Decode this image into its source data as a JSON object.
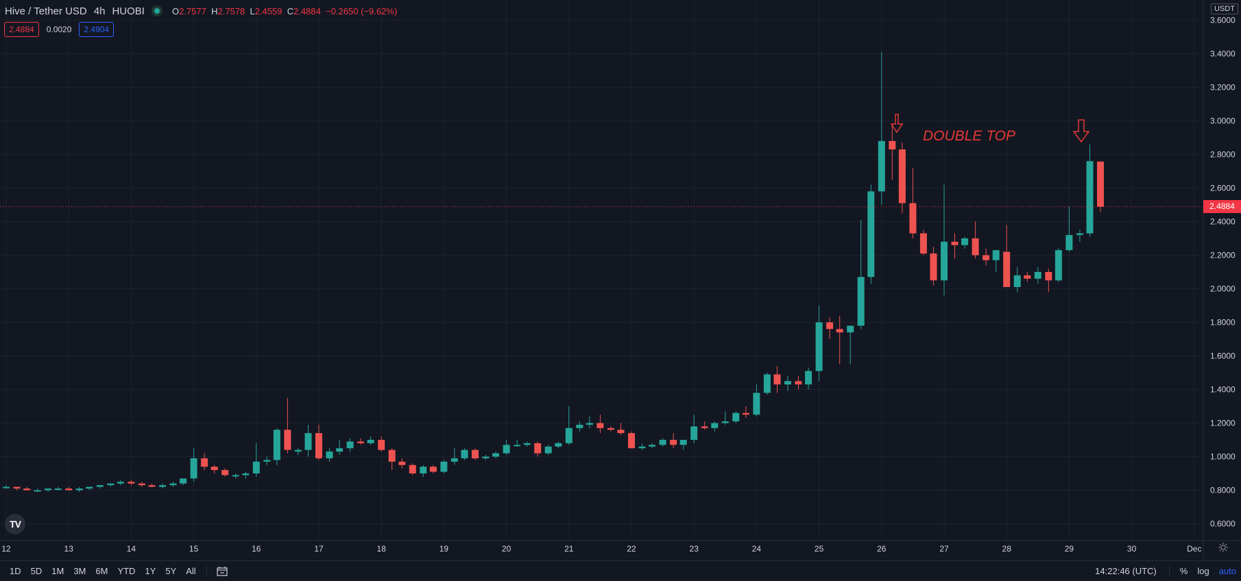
{
  "symbol": {
    "name": "Hive / Tether USD",
    "interval": "4h",
    "exchange": "HUOBI"
  },
  "ohlc": {
    "o_label": "O",
    "o": "2.7577",
    "h_label": "H",
    "h": "2.7578",
    "l_label": "L",
    "l": "2.4559",
    "c_label": "C",
    "c": "2.4884",
    "change": "−0.2650 (−9.62%)"
  },
  "quote": {
    "sell": "2.4884",
    "spread": "0.0020",
    "buy": "2.4904"
  },
  "currency_tag": "USDT",
  "last_price_label": "2.4884",
  "timeframes": [
    "1D",
    "5D",
    "1M",
    "3M",
    "6M",
    "YTD",
    "1Y",
    "5Y",
    "All"
  ],
  "clock": "14:22:46 (UTC)",
  "scale_buttons": {
    "percent": "%",
    "log": "log",
    "auto": "auto"
  },
  "logo_text": "TV",
  "colors": {
    "up": "#26a69a",
    "down": "#ef5350",
    "background": "#131722",
    "grid": "#1e222d",
    "annotation": "#e53935",
    "last_price_line": "#f23645"
  },
  "icons": {
    "calendar": "calendar-icon",
    "settings": "gear-icon",
    "live": "live-dot-icon",
    "arrows": "down-arrow-icon"
  },
  "chart_data": {
    "type": "candlestick",
    "y_scale": "linear",
    "ylim": [
      0.5,
      3.72
    ],
    "y_ticks": [
      "3.6000",
      "3.4000",
      "3.2000",
      "3.0000",
      "2.8000",
      "2.6000",
      "2.4000",
      "2.2000",
      "2.0000",
      "1.8000",
      "1.6000",
      "1.4000",
      "1.2000",
      "1.0000",
      "0.8000",
      "0.6000"
    ],
    "x_ticks": [
      "12",
      "13",
      "14",
      "15",
      "16",
      "17",
      "18",
      "19",
      "20",
      "21",
      "22",
      "23",
      "24",
      "25",
      "26",
      "27",
      "28",
      "29",
      "30",
      "Dec"
    ],
    "last_price": 2.4884,
    "annotation": "DOUBLE TOP",
    "series": [
      {
        "d": 12.0,
        "o": 0.82,
        "h": 0.83,
        "l": 0.81,
        "c": 0.82
      },
      {
        "d": 12.17,
        "o": 0.82,
        "h": 0.82,
        "l": 0.8,
        "c": 0.81
      },
      {
        "d": 12.33,
        "o": 0.81,
        "h": 0.82,
        "l": 0.8,
        "c": 0.8
      },
      {
        "d": 12.5,
        "o": 0.8,
        "h": 0.81,
        "l": 0.79,
        "c": 0.8
      },
      {
        "d": 12.67,
        "o": 0.8,
        "h": 0.81,
        "l": 0.79,
        "c": 0.81
      },
      {
        "d": 12.83,
        "o": 0.81,
        "h": 0.82,
        "l": 0.8,
        "c": 0.81
      },
      {
        "d": 13.0,
        "o": 0.81,
        "h": 0.82,
        "l": 0.8,
        "c": 0.8
      },
      {
        "d": 13.17,
        "o": 0.8,
        "h": 0.82,
        "l": 0.79,
        "c": 0.81
      },
      {
        "d": 13.33,
        "o": 0.81,
        "h": 0.82,
        "l": 0.8,
        "c": 0.82
      },
      {
        "d": 13.5,
        "o": 0.82,
        "h": 0.83,
        "l": 0.81,
        "c": 0.83
      },
      {
        "d": 13.67,
        "o": 0.83,
        "h": 0.84,
        "l": 0.82,
        "c": 0.84
      },
      {
        "d": 13.83,
        "o": 0.84,
        "h": 0.86,
        "l": 0.83,
        "c": 0.85
      },
      {
        "d": 14.0,
        "o": 0.85,
        "h": 0.86,
        "l": 0.83,
        "c": 0.84
      },
      {
        "d": 14.17,
        "o": 0.84,
        "h": 0.85,
        "l": 0.82,
        "c": 0.83
      },
      {
        "d": 14.33,
        "o": 0.83,
        "h": 0.84,
        "l": 0.82,
        "c": 0.82
      },
      {
        "d": 14.5,
        "o": 0.82,
        "h": 0.84,
        "l": 0.81,
        "c": 0.83
      },
      {
        "d": 14.67,
        "o": 0.83,
        "h": 0.85,
        "l": 0.82,
        "c": 0.84
      },
      {
        "d": 14.83,
        "o": 0.84,
        "h": 0.87,
        "l": 0.83,
        "c": 0.87
      },
      {
        "d": 15.0,
        "o": 0.87,
        "h": 1.05,
        "l": 0.85,
        "c": 0.99
      },
      {
        "d": 15.17,
        "o": 0.99,
        "h": 1.02,
        "l": 0.92,
        "c": 0.94
      },
      {
        "d": 15.33,
        "o": 0.94,
        "h": 0.95,
        "l": 0.9,
        "c": 0.92
      },
      {
        "d": 15.5,
        "o": 0.92,
        "h": 0.93,
        "l": 0.88,
        "c": 0.89
      },
      {
        "d": 15.67,
        "o": 0.89,
        "h": 0.9,
        "l": 0.87,
        "c": 0.89
      },
      {
        "d": 15.83,
        "o": 0.89,
        "h": 0.91,
        "l": 0.87,
        "c": 0.9
      },
      {
        "d": 16.0,
        "o": 0.9,
        "h": 1.08,
        "l": 0.88,
        "c": 0.97
      },
      {
        "d": 16.17,
        "o": 0.97,
        "h": 1.0,
        "l": 0.95,
        "c": 0.98
      },
      {
        "d": 16.33,
        "o": 0.98,
        "h": 1.17,
        "l": 0.95,
        "c": 1.16
      },
      {
        "d": 16.5,
        "o": 1.16,
        "h": 1.35,
        "l": 1.02,
        "c": 1.04
      },
      {
        "d": 16.67,
        "o": 1.03,
        "h": 1.05,
        "l": 1.01,
        "c": 1.04
      },
      {
        "d": 16.83,
        "o": 1.04,
        "h": 1.19,
        "l": 1.0,
        "c": 1.14
      },
      {
        "d": 17.0,
        "o": 1.14,
        "h": 1.19,
        "l": 0.98,
        "c": 0.99
      },
      {
        "d": 17.17,
        "o": 0.99,
        "h": 1.05,
        "l": 0.97,
        "c": 1.03
      },
      {
        "d": 17.33,
        "o": 1.03,
        "h": 1.1,
        "l": 1.01,
        "c": 1.05
      },
      {
        "d": 17.5,
        "o": 1.05,
        "h": 1.11,
        "l": 1.03,
        "c": 1.09
      },
      {
        "d": 17.67,
        "o": 1.09,
        "h": 1.11,
        "l": 1.07,
        "c": 1.08
      },
      {
        "d": 17.83,
        "o": 1.08,
        "h": 1.12,
        "l": 1.07,
        "c": 1.1
      },
      {
        "d": 18.0,
        "o": 1.1,
        "h": 1.12,
        "l": 1.03,
        "c": 1.04
      },
      {
        "d": 18.17,
        "o": 1.04,
        "h": 1.05,
        "l": 0.92,
        "c": 0.97
      },
      {
        "d": 18.33,
        "o": 0.97,
        "h": 0.99,
        "l": 0.93,
        "c": 0.95
      },
      {
        "d": 18.5,
        "o": 0.95,
        "h": 0.96,
        "l": 0.89,
        "c": 0.9
      },
      {
        "d": 18.67,
        "o": 0.9,
        "h": 0.95,
        "l": 0.88,
        "c": 0.94
      },
      {
        "d": 18.83,
        "o": 0.94,
        "h": 0.95,
        "l": 0.9,
        "c": 0.91
      },
      {
        "d": 19.0,
        "o": 0.91,
        "h": 0.98,
        "l": 0.9,
        "c": 0.97
      },
      {
        "d": 19.17,
        "o": 0.97,
        "h": 1.05,
        "l": 0.95,
        "c": 0.99
      },
      {
        "d": 19.33,
        "o": 0.99,
        "h": 1.05,
        "l": 0.98,
        "c": 1.04
      },
      {
        "d": 19.5,
        "o": 1.04,
        "h": 1.05,
        "l": 0.98,
        "c": 0.99
      },
      {
        "d": 19.67,
        "o": 0.99,
        "h": 1.01,
        "l": 0.98,
        "c": 1.0
      },
      {
        "d": 19.83,
        "o": 1.0,
        "h": 1.03,
        "l": 0.99,
        "c": 1.02
      },
      {
        "d": 20.0,
        "o": 1.02,
        "h": 1.1,
        "l": 1.01,
        "c": 1.07
      },
      {
        "d": 20.17,
        "o": 1.07,
        "h": 1.1,
        "l": 1.06,
        "c": 1.07
      },
      {
        "d": 20.33,
        "o": 1.07,
        "h": 1.09,
        "l": 1.06,
        "c": 1.08
      },
      {
        "d": 20.5,
        "o": 1.08,
        "h": 1.09,
        "l": 1.0,
        "c": 1.02
      },
      {
        "d": 20.67,
        "o": 1.02,
        "h": 1.07,
        "l": 1.01,
        "c": 1.06
      },
      {
        "d": 20.83,
        "o": 1.06,
        "h": 1.09,
        "l": 1.05,
        "c": 1.08
      },
      {
        "d": 21.0,
        "o": 1.08,
        "h": 1.3,
        "l": 1.07,
        "c": 1.17
      },
      {
        "d": 21.17,
        "o": 1.17,
        "h": 1.21,
        "l": 1.15,
        "c": 1.19
      },
      {
        "d": 21.33,
        "o": 1.19,
        "h": 1.24,
        "l": 1.17,
        "c": 1.2
      },
      {
        "d": 21.5,
        "o": 1.2,
        "h": 1.25,
        "l": 1.14,
        "c": 1.17
      },
      {
        "d": 21.67,
        "o": 1.17,
        "h": 1.18,
        "l": 1.15,
        "c": 1.16
      },
      {
        "d": 21.83,
        "o": 1.16,
        "h": 1.2,
        "l": 1.13,
        "c": 1.14
      },
      {
        "d": 22.0,
        "o": 1.14,
        "h": 1.15,
        "l": 1.05,
        "c": 1.05
      },
      {
        "d": 22.17,
        "o": 1.05,
        "h": 1.08,
        "l": 1.04,
        "c": 1.06
      },
      {
        "d": 22.33,
        "o": 1.06,
        "h": 1.08,
        "l": 1.05,
        "c": 1.07
      },
      {
        "d": 22.5,
        "o": 1.07,
        "h": 1.11,
        "l": 1.06,
        "c": 1.1
      },
      {
        "d": 22.67,
        "o": 1.1,
        "h": 1.14,
        "l": 1.05,
        "c": 1.07
      },
      {
        "d": 22.83,
        "o": 1.07,
        "h": 1.1,
        "l": 1.04,
        "c": 1.1
      },
      {
        "d": 23.0,
        "o": 1.1,
        "h": 1.25,
        "l": 1.08,
        "c": 1.18
      },
      {
        "d": 23.17,
        "o": 1.18,
        "h": 1.21,
        "l": 1.16,
        "c": 1.17
      },
      {
        "d": 23.33,
        "o": 1.17,
        "h": 1.21,
        "l": 1.15,
        "c": 1.2
      },
      {
        "d": 23.5,
        "o": 1.2,
        "h": 1.27,
        "l": 1.19,
        "c": 1.21
      },
      {
        "d": 23.67,
        "o": 1.21,
        "h": 1.27,
        "l": 1.2,
        "c": 1.26
      },
      {
        "d": 23.83,
        "o": 1.26,
        "h": 1.3,
        "l": 1.23,
        "c": 1.25
      },
      {
        "d": 24.0,
        "o": 1.25,
        "h": 1.43,
        "l": 1.24,
        "c": 1.38
      },
      {
        "d": 24.17,
        "o": 1.38,
        "h": 1.5,
        "l": 1.37,
        "c": 1.49
      },
      {
        "d": 24.33,
        "o": 1.49,
        "h": 1.54,
        "l": 1.38,
        "c": 1.43
      },
      {
        "d": 24.5,
        "o": 1.43,
        "h": 1.48,
        "l": 1.39,
        "c": 1.45
      },
      {
        "d": 24.67,
        "o": 1.45,
        "h": 1.48,
        "l": 1.4,
        "c": 1.43
      },
      {
        "d": 24.83,
        "o": 1.43,
        "h": 1.53,
        "l": 1.4,
        "c": 1.51
      },
      {
        "d": 25.0,
        "o": 1.51,
        "h": 1.9,
        "l": 1.45,
        "c": 1.8
      },
      {
        "d": 25.17,
        "o": 1.8,
        "h": 1.83,
        "l": 1.7,
        "c": 1.76
      },
      {
        "d": 25.33,
        "o": 1.76,
        "h": 1.84,
        "l": 1.55,
        "c": 1.74
      },
      {
        "d": 25.5,
        "o": 1.74,
        "h": 1.78,
        "l": 1.55,
        "c": 1.78
      },
      {
        "d": 25.67,
        "o": 1.78,
        "h": 2.41,
        "l": 1.76,
        "c": 2.07
      },
      {
        "d": 25.83,
        "o": 2.07,
        "h": 2.62,
        "l": 2.03,
        "c": 2.58
      },
      {
        "d": 26.0,
        "o": 2.58,
        "h": 3.41,
        "l": 2.5,
        "c": 2.88
      },
      {
        "d": 26.17,
        "o": 2.88,
        "h": 2.98,
        "l": 2.65,
        "c": 2.83
      },
      {
        "d": 26.33,
        "o": 2.83,
        "h": 2.87,
        "l": 2.45,
        "c": 2.51
      },
      {
        "d": 26.5,
        "o": 2.51,
        "h": 2.72,
        "l": 2.3,
        "c": 2.33
      },
      {
        "d": 26.67,
        "o": 2.33,
        "h": 2.35,
        "l": 2.2,
        "c": 2.21
      },
      {
        "d": 26.83,
        "o": 2.21,
        "h": 2.25,
        "l": 2.02,
        "c": 2.05
      },
      {
        "d": 27.0,
        "o": 2.05,
        "h": 2.62,
        "l": 1.96,
        "c": 2.28
      },
      {
        "d": 27.17,
        "o": 2.28,
        "h": 2.33,
        "l": 2.18,
        "c": 2.26
      },
      {
        "d": 27.33,
        "o": 2.26,
        "h": 2.31,
        "l": 2.24,
        "c": 2.3
      },
      {
        "d": 27.5,
        "o": 2.3,
        "h": 2.4,
        "l": 2.18,
        "c": 2.2
      },
      {
        "d": 27.67,
        "o": 2.2,
        "h": 2.24,
        "l": 2.14,
        "c": 2.17
      },
      {
        "d": 27.83,
        "o": 2.17,
        "h": 2.23,
        "l": 2.1,
        "c": 2.23
      },
      {
        "d": 28.0,
        "o": 2.22,
        "h": 2.38,
        "l": 2.01,
        "c": 2.01
      },
      {
        "d": 28.17,
        "o": 2.01,
        "h": 2.13,
        "l": 1.98,
        "c": 2.08
      },
      {
        "d": 28.33,
        "o": 2.08,
        "h": 2.1,
        "l": 2.04,
        "c": 2.06
      },
      {
        "d": 28.5,
        "o": 2.06,
        "h": 2.13,
        "l": 2.03,
        "c": 2.1
      },
      {
        "d": 28.67,
        "o": 2.1,
        "h": 2.12,
        "l": 1.98,
        "c": 2.05
      },
      {
        "d": 28.83,
        "o": 2.05,
        "h": 2.24,
        "l": 2.04,
        "c": 2.23
      },
      {
        "d": 29.0,
        "o": 2.23,
        "h": 2.49,
        "l": 2.22,
        "c": 2.32
      },
      {
        "d": 29.17,
        "o": 2.32,
        "h": 2.35,
        "l": 2.28,
        "c": 2.33
      },
      {
        "d": 29.33,
        "o": 2.33,
        "h": 2.86,
        "l": 2.31,
        "c": 2.76
      },
      {
        "d": 29.5,
        "o": 2.7577,
        "h": 2.7578,
        "l": 2.4559,
        "c": 2.4884
      }
    ]
  }
}
